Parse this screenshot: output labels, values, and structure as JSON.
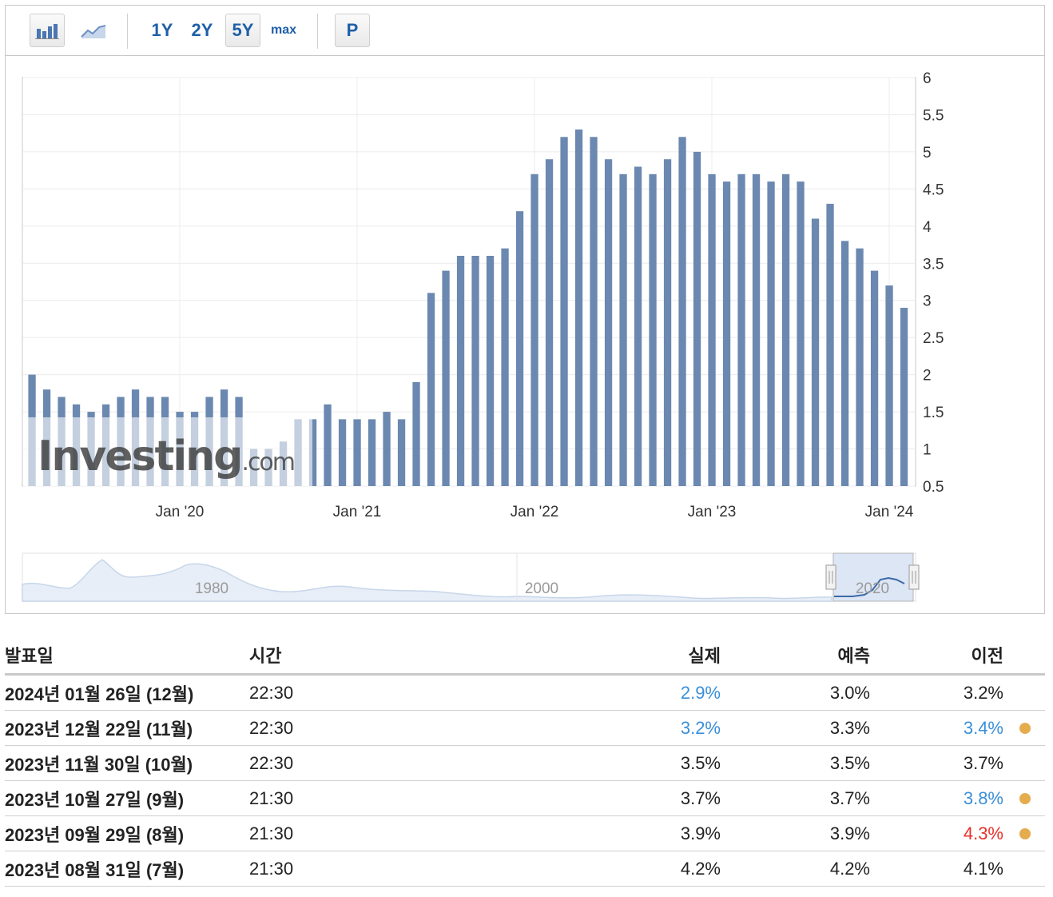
{
  "toolbar": {
    "bar_chart_icon": "bar-chart-icon",
    "line_chart_icon": "line-chart-icon",
    "ranges": [
      "1Y",
      "2Y",
      "5Y",
      "max"
    ],
    "selected_range": "5Y",
    "p_label": "P"
  },
  "watermark": {
    "brand": "Investing",
    "suffix": ".com"
  },
  "navigator": {
    "year_labels": [
      "1980",
      "2000",
      "2020"
    ]
  },
  "chart_data": {
    "type": "bar",
    "color": "#6b88b0",
    "x_tick_labels": [
      "Jan '20",
      "Jan '21",
      "Jan '22",
      "Jan '23",
      "Jan '24"
    ],
    "y_ticks": [
      "0.5",
      "1",
      "1.5",
      "2",
      "2.5",
      "3",
      "3.5",
      "4",
      "4.5",
      "5",
      "5.5",
      "6"
    ],
    "ylim": [
      0.5,
      6
    ],
    "grid": true,
    "values": [
      2.0,
      1.8,
      1.7,
      1.6,
      1.5,
      1.6,
      1.7,
      1.8,
      1.7,
      1.7,
      1.5,
      1.5,
      1.7,
      1.8,
      1.7,
      1.0,
      1.0,
      1.1,
      1.4,
      1.4,
      1.6,
      1.4,
      1.4,
      1.4,
      1.5,
      1.4,
      1.9,
      3.1,
      3.4,
      3.6,
      3.6,
      3.6,
      3.7,
      4.2,
      4.7,
      4.9,
      5.2,
      5.3,
      5.2,
      4.9,
      4.7,
      4.8,
      4.7,
      4.9,
      5.2,
      5.0,
      4.7,
      4.6,
      4.7,
      4.7,
      4.6,
      4.7,
      4.6,
      4.1,
      4.3,
      3.8,
      3.7,
      3.4,
      3.2,
      2.9
    ]
  },
  "table": {
    "headers": {
      "date": "발표일",
      "time": "시간",
      "actual": "실제",
      "forecast": "예측",
      "previous": "이전"
    },
    "rows": [
      {
        "date": "2024년 01월 26일 (12월)",
        "time": "22:30",
        "actual": "2.9%",
        "actual_color": "#3a8fd9",
        "forecast": "3.0%",
        "previous": "3.2%",
        "previous_color": "#222222",
        "revised": false
      },
      {
        "date": "2023년 12월 22일 (11월)",
        "time": "22:30",
        "actual": "3.2%",
        "actual_color": "#3a8fd9",
        "forecast": "3.3%",
        "previous": "3.4%",
        "previous_color": "#3a8fd9",
        "revised": true
      },
      {
        "date": "2023년 11월 30일 (10월)",
        "time": "22:30",
        "actual": "3.5%",
        "actual_color": "#222222",
        "forecast": "3.5%",
        "previous": "3.7%",
        "previous_color": "#222222",
        "revised": false
      },
      {
        "date": "2023년 10월 27일 (9월)",
        "time": "21:30",
        "actual": "3.7%",
        "actual_color": "#222222",
        "forecast": "3.7%",
        "previous": "3.8%",
        "previous_color": "#3a8fd9",
        "revised": true
      },
      {
        "date": "2023년 09월 29일 (8월)",
        "time": "21:30",
        "actual": "3.9%",
        "actual_color": "#222222",
        "forecast": "3.9%",
        "previous": "4.3%",
        "previous_color": "#e8312a",
        "revised": true
      },
      {
        "date": "2023년 08월 31일 (7월)",
        "time": "21:30",
        "actual": "4.2%",
        "actual_color": "#222222",
        "forecast": "4.2%",
        "previous": "4.1%",
        "previous_color": "#222222",
        "revised": false
      }
    ]
  }
}
